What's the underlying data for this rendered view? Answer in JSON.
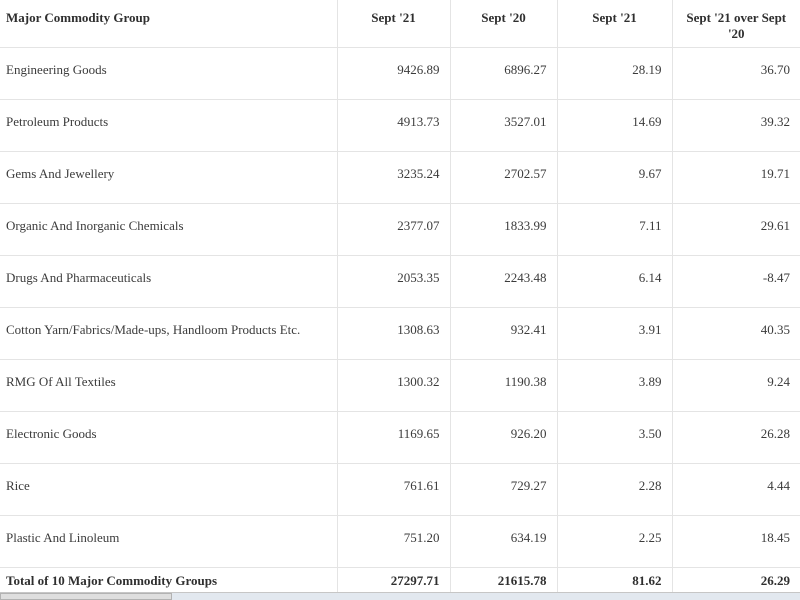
{
  "table": {
    "columns": [
      {
        "label": "Major Commodity Group"
      },
      {
        "label": "Sept '21"
      },
      {
        "label": "Sept '20"
      },
      {
        "label": "Sept '21"
      },
      {
        "label": "Sept '21 over Sept '20"
      }
    ],
    "rows": [
      [
        "Engineering Goods",
        "9426.89",
        "6896.27",
        "28.19",
        "36.70"
      ],
      [
        "Petroleum Products",
        "4913.73",
        "3527.01",
        "14.69",
        "39.32"
      ],
      [
        "Gems And Jewellery",
        "3235.24",
        "2702.57",
        "9.67",
        "19.71"
      ],
      [
        "Organic And Inorganic Chemicals",
        "2377.07",
        "1833.99",
        "7.11",
        "29.61"
      ],
      [
        "Drugs And Pharmaceuticals",
        "2053.35",
        "2243.48",
        "6.14",
        "-8.47"
      ],
      [
        "Cotton Yarn/Fabrics/Made-ups, Handloom Products Etc.",
        "1308.63",
        "932.41",
        "3.91",
        "40.35"
      ],
      [
        "RMG Of All Textiles",
        "1300.32",
        "1190.38",
        "3.89",
        "9.24"
      ],
      [
        "Electronic Goods",
        "1169.65",
        "926.20",
        "3.50",
        "26.28"
      ],
      [
        "Rice",
        "761.61",
        "729.27",
        "2.28",
        "4.44"
      ],
      [
        "Plastic And Linoleum",
        "751.20",
        "634.19",
        "2.25",
        "18.45"
      ]
    ],
    "total_row": [
      "Total of 10 Major Commodity Groups",
      "27297.71",
      "21615.78",
      "81.62",
      "26.29"
    ]
  }
}
